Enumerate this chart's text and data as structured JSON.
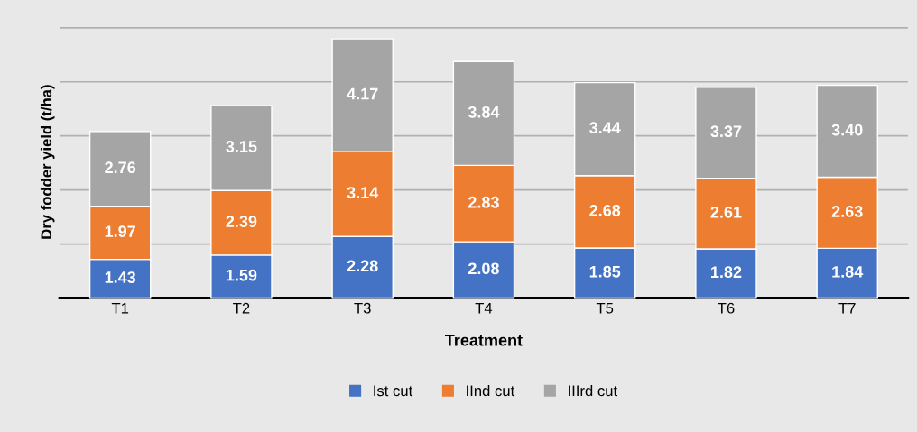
{
  "chart_data": {
    "type": "bar",
    "stacked": true,
    "xlabel": "Treatment",
    "ylabel": "Dry fodder yield (t/ha)",
    "categories": [
      "T1",
      "T2",
      "T3",
      "T4",
      "T5",
      "T6",
      "T7"
    ],
    "series": [
      {
        "name": "Ist cut",
        "color": "#4472c4",
        "values": [
          1.43,
          1.59,
          2.28,
          2.08,
          1.85,
          1.82,
          1.84
        ],
        "value_labels": [
          "1.43",
          "1.59",
          "2.28",
          "2.08",
          "1.85",
          "1.82",
          "1.84"
        ]
      },
      {
        "name": "IInd cut",
        "color": "#ed7d31",
        "values": [
          1.97,
          2.39,
          3.14,
          2.83,
          2.68,
          2.61,
          2.63
        ],
        "value_labels": [
          "1.97",
          "2.39",
          "3.14",
          "2.83",
          "2.68",
          "2.61",
          "2.63"
        ]
      },
      {
        "name": "IIIrd cut",
        "color": "#a5a5a5",
        "values": [
          2.76,
          3.15,
          4.17,
          3.84,
          3.44,
          3.37,
          3.4
        ],
        "value_labels": [
          "2.76",
          "3.15",
          "4.17",
          "3.84",
          "3.44",
          "3.37",
          "3.40"
        ]
      }
    ],
    "grid": "y",
    "legend": "bottom",
    "tick_labels": "x"
  }
}
